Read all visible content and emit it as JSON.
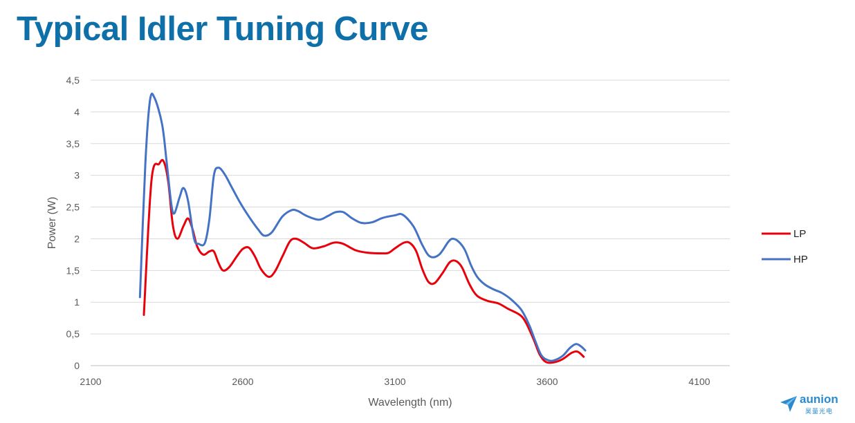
{
  "title": "Typical Idler Tuning Curve",
  "colors": {
    "title": "#0f6fa8",
    "lp": "#e8000b",
    "hp": "#4472c4",
    "grid": "#d9d9d9"
  },
  "chart_data": {
    "type": "line",
    "xlabel": "Wavelength (nm)",
    "ylabel": "Power (W)",
    "xlim": [
      2100,
      4200
    ],
    "ylim": [
      0,
      4.5
    ],
    "xticks": [
      2100,
      2600,
      3100,
      3600,
      4100
    ],
    "xtick_labels": [
      "2100",
      "2600",
      "3100",
      "3600",
      "4100"
    ],
    "yticks": [
      0,
      0.5,
      1,
      1.5,
      2,
      2.5,
      3,
      3.5,
      4,
      4.5
    ],
    "ytick_labels": [
      "0",
      "0,5",
      "1",
      "1,5",
      "2",
      "2,5",
      "3",
      "3,5",
      "4",
      "4,5"
    ],
    "grid": true,
    "legend_position": "right",
    "series": [
      {
        "name": "LP",
        "color": "#e8000b",
        "points": [
          [
            2275,
            0.8
          ],
          [
            2300,
            2.92
          ],
          [
            2325,
            3.18
          ],
          [
            2340,
            3.22
          ],
          [
            2355,
            2.9
          ],
          [
            2370,
            2.22
          ],
          [
            2385,
            2.0
          ],
          [
            2405,
            2.2
          ],
          [
            2420,
            2.32
          ],
          [
            2435,
            2.15
          ],
          [
            2450,
            1.88
          ],
          [
            2470,
            1.75
          ],
          [
            2490,
            1.8
          ],
          [
            2505,
            1.8
          ],
          [
            2520,
            1.62
          ],
          [
            2535,
            1.5
          ],
          [
            2555,
            1.55
          ],
          [
            2580,
            1.72
          ],
          [
            2600,
            1.84
          ],
          [
            2620,
            1.86
          ],
          [
            2640,
            1.72
          ],
          [
            2660,
            1.52
          ],
          [
            2685,
            1.4
          ],
          [
            2705,
            1.48
          ],
          [
            2730,
            1.72
          ],
          [
            2755,
            1.96
          ],
          [
            2775,
            2.0
          ],
          [
            2800,
            1.94
          ],
          [
            2830,
            1.85
          ],
          [
            2865,
            1.88
          ],
          [
            2900,
            1.94
          ],
          [
            2930,
            1.92
          ],
          [
            2970,
            1.82
          ],
          [
            3010,
            1.78
          ],
          [
            3060,
            1.77
          ],
          [
            3080,
            1.78
          ],
          [
            3100,
            1.85
          ],
          [
            3130,
            1.94
          ],
          [
            3150,
            1.93
          ],
          [
            3170,
            1.8
          ],
          [
            3190,
            1.52
          ],
          [
            3210,
            1.32
          ],
          [
            3230,
            1.3
          ],
          [
            3255,
            1.45
          ],
          [
            3280,
            1.63
          ],
          [
            3300,
            1.65
          ],
          [
            3320,
            1.55
          ],
          [
            3345,
            1.28
          ],
          [
            3370,
            1.1
          ],
          [
            3405,
            1.02
          ],
          [
            3440,
            0.98
          ],
          [
            3470,
            0.9
          ],
          [
            3510,
            0.8
          ],
          [
            3530,
            0.68
          ],
          [
            3555,
            0.42
          ],
          [
            3575,
            0.18
          ],
          [
            3595,
            0.06
          ],
          [
            3620,
            0.05
          ],
          [
            3650,
            0.1
          ],
          [
            3680,
            0.2
          ],
          [
            3700,
            0.22
          ],
          [
            3720,
            0.14
          ]
        ]
      },
      {
        "name": "HP",
        "color": "#4472c4",
        "points": [
          [
            2262,
            1.08
          ],
          [
            2280,
            3.2
          ],
          [
            2295,
            4.18
          ],
          [
            2310,
            4.22
          ],
          [
            2335,
            3.8
          ],
          [
            2350,
            3.2
          ],
          [
            2365,
            2.55
          ],
          [
            2375,
            2.4
          ],
          [
            2392,
            2.65
          ],
          [
            2405,
            2.8
          ],
          [
            2420,
            2.6
          ],
          [
            2440,
            2.0
          ],
          [
            2455,
            1.92
          ],
          [
            2475,
            1.93
          ],
          [
            2490,
            2.3
          ],
          [
            2505,
            3.0
          ],
          [
            2520,
            3.12
          ],
          [
            2540,
            3.02
          ],
          [
            2565,
            2.8
          ],
          [
            2590,
            2.58
          ],
          [
            2620,
            2.35
          ],
          [
            2650,
            2.15
          ],
          [
            2670,
            2.05
          ],
          [
            2695,
            2.1
          ],
          [
            2730,
            2.35
          ],
          [
            2760,
            2.45
          ],
          [
            2780,
            2.44
          ],
          [
            2810,
            2.36
          ],
          [
            2850,
            2.3
          ],
          [
            2880,
            2.36
          ],
          [
            2905,
            2.42
          ],
          [
            2930,
            2.42
          ],
          [
            2960,
            2.32
          ],
          [
            2990,
            2.25
          ],
          [
            3025,
            2.26
          ],
          [
            3060,
            2.33
          ],
          [
            3100,
            2.37
          ],
          [
            3125,
            2.38
          ],
          [
            3160,
            2.2
          ],
          [
            3190,
            1.9
          ],
          [
            3215,
            1.72
          ],
          [
            3245,
            1.75
          ],
          [
            3275,
            1.95
          ],
          [
            3290,
            2.0
          ],
          [
            3310,
            1.95
          ],
          [
            3330,
            1.82
          ],
          [
            3350,
            1.58
          ],
          [
            3370,
            1.4
          ],
          [
            3395,
            1.28
          ],
          [
            3425,
            1.2
          ],
          [
            3450,
            1.15
          ],
          [
            3480,
            1.05
          ],
          [
            3515,
            0.88
          ],
          [
            3540,
            0.65
          ],
          [
            3560,
            0.4
          ],
          [
            3580,
            0.17
          ],
          [
            3600,
            0.09
          ],
          [
            3620,
            0.08
          ],
          [
            3650,
            0.15
          ],
          [
            3675,
            0.28
          ],
          [
            3695,
            0.34
          ],
          [
            3712,
            0.3
          ],
          [
            3725,
            0.24
          ]
        ]
      }
    ]
  },
  "logo": {
    "word": "aunion",
    "sub": "昊量光电"
  }
}
